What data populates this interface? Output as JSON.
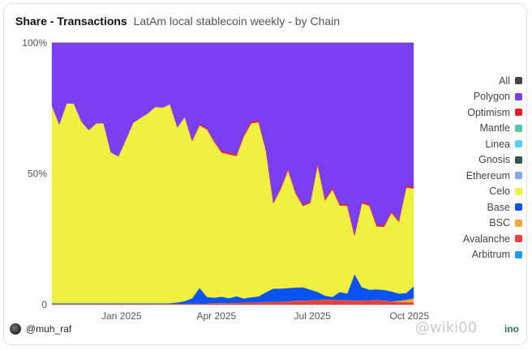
{
  "header": {
    "title": "Share - Transactions",
    "subtitle": "LatAm local stablecoin weekly - by Chain"
  },
  "footer": {
    "author": "@muh_raf",
    "brand": "ino",
    "watermark": "@wiki00"
  },
  "colors": {
    "All": "#444444",
    "Polygon": "#7b3ff2",
    "Optimism": "#ee1d25",
    "Mantle": "#5bc4a7",
    "Linea": "#56d3ef",
    "Gnosis": "#36574b",
    "Ethereum": "#8aa6e8",
    "Celo": "#eff041",
    "Base": "#0a52f2",
    "BSC": "#f2a83a",
    "Avalanche": "#e8413d",
    "Arbitrum": "#1a9ee8"
  },
  "chart_data": {
    "type": "area",
    "stacked": true,
    "normalized": true,
    "title": "Share - Transactions",
    "subtitle": "LatAm local stablecoin weekly - by Chain",
    "yticks": [
      "0",
      "50%",
      "100%"
    ],
    "xticks": [
      "Jan 2025",
      "Apr 2025",
      "Jul 2025",
      "Oct 2025"
    ],
    "ylim": [
      0,
      100
    ],
    "grid": false,
    "legend_position": "right",
    "legend": [
      "All",
      "Polygon",
      "Optimism",
      "Mantle",
      "Linea",
      "Gnosis",
      "Ethereum",
      "Celo",
      "Base",
      "BSC",
      "Avalanche",
      "Arbitrum"
    ],
    "x": [
      "2024-10-27",
      "2024-11-03",
      "2024-11-10",
      "2024-11-17",
      "2024-11-24",
      "2024-12-01",
      "2024-12-08",
      "2024-12-15",
      "2024-12-22",
      "2024-12-29",
      "2025-01-05",
      "2025-01-12",
      "2025-01-19",
      "2025-01-26",
      "2025-02-02",
      "2025-02-09",
      "2025-02-16",
      "2025-02-23",
      "2025-03-02",
      "2025-03-09",
      "2025-03-16",
      "2025-03-23",
      "2025-03-30",
      "2025-04-06",
      "2025-04-13",
      "2025-04-20",
      "2025-04-27",
      "2025-05-04",
      "2025-05-11",
      "2025-05-18",
      "2025-05-25",
      "2025-06-01",
      "2025-06-08",
      "2025-06-15",
      "2025-06-22",
      "2025-06-29",
      "2025-07-06",
      "2025-07-13",
      "2025-07-20",
      "2025-07-27",
      "2025-08-03",
      "2025-08-10",
      "2025-08-17",
      "2025-08-24",
      "2025-08-31",
      "2025-09-07",
      "2025-09-14",
      "2025-09-21",
      "2025-09-28",
      "2025-10-05"
    ],
    "series": [
      {
        "name": "Arbitrum",
        "values": [
          0,
          0,
          0,
          0,
          0,
          0,
          0,
          0,
          0,
          0,
          0,
          0,
          0,
          0,
          0,
          0,
          0,
          0,
          0,
          0,
          0,
          0,
          0,
          0,
          0,
          0,
          0,
          0,
          0,
          0,
          0,
          0,
          0,
          0,
          0,
          0,
          0,
          0,
          0,
          0,
          0,
          0,
          0,
          0,
          0,
          0,
          0,
          0,
          0,
          0
        ]
      },
      {
        "name": "Avalanche",
        "values": [
          0.2,
          0.2,
          0.2,
          0.2,
          0.2,
          0.2,
          0.2,
          0.2,
          0.2,
          0.2,
          0.2,
          0.2,
          0.2,
          0.2,
          0.2,
          0.2,
          0.2,
          0.2,
          0.2,
          0.3,
          0.3,
          0.3,
          0.5,
          0.5,
          0.5,
          0.6,
          0.7,
          0.7,
          0.8,
          0.9,
          1,
          1,
          1.2,
          1.4,
          1.5,
          1.6,
          1.7,
          1.8,
          1.8,
          1.7,
          1.6,
          1.5,
          1.5,
          1.6,
          1.7,
          1.5,
          1.2,
          1,
          0.9,
          0.9
        ]
      },
      {
        "name": "BSC",
        "values": [
          0.1,
          0.1,
          0.1,
          0.1,
          0.1,
          0.1,
          0.1,
          0.1,
          0.1,
          0.1,
          0.1,
          0.1,
          0.1,
          0.1,
          0.1,
          0.1,
          0.1,
          0.1,
          0.1,
          0.1,
          0.1,
          0.1,
          0.1,
          0.1,
          0.1,
          0.1,
          0.1,
          0.1,
          0.1,
          0.1,
          0.1,
          0.1,
          0.1,
          0.1,
          0.1,
          0.1,
          0.1,
          0.1,
          0.1,
          0.1,
          0.1,
          0.1,
          0.1,
          0.1,
          0.1,
          0.1,
          0.1,
          0.5,
          1,
          1.5
        ]
      },
      {
        "name": "Base",
        "values": [
          0.2,
          0.2,
          0.2,
          0.2,
          0.2,
          0.2,
          0.2,
          0.2,
          0.2,
          0.2,
          0.2,
          0.2,
          0.2,
          0.2,
          0.2,
          0.2,
          0.2,
          0.5,
          1,
          2,
          6,
          2.5,
          2,
          2.4,
          1.8,
          2.5,
          1.5,
          2,
          2.2,
          3.7,
          5,
          5,
          5,
          5,
          5,
          4,
          3,
          1.5,
          1,
          3,
          2.5,
          10,
          5,
          4,
          4,
          4,
          3.7,
          2.7,
          2.5,
          4.5
        ]
      },
      {
        "name": "Ethereum",
        "values": [
          0,
          0,
          0,
          0,
          0,
          0,
          0,
          0,
          0,
          0,
          0,
          0,
          0,
          0,
          0,
          0,
          0,
          0,
          0,
          0,
          0,
          0,
          0,
          0,
          0,
          0,
          0,
          0,
          0,
          0,
          0,
          0,
          0,
          0,
          0,
          0,
          0,
          0,
          0,
          0,
          0,
          0,
          0,
          0,
          0,
          0,
          0,
          0,
          0,
          0
        ]
      },
      {
        "name": "Gnosis",
        "values": [
          0.1,
          0.1,
          0.1,
          0.1,
          0.1,
          0.1,
          0.1,
          0.1,
          0.1,
          0.1,
          0.1,
          0.1,
          0.1,
          0.1,
          0.1,
          0.1,
          0.1,
          0.1,
          0.1,
          0.1,
          0.1,
          0.1,
          0.1,
          0.1,
          0.1,
          0.1,
          0.1,
          0.1,
          0.1,
          0.1,
          0.1,
          0.1,
          0.1,
          0.1,
          0.1,
          0.1,
          0.1,
          0.1,
          0.1,
          0.1,
          0.1,
          0.1,
          0.1,
          0.1,
          0.1,
          0.1,
          0.1,
          0.1,
          0.1,
          0.1
        ]
      },
      {
        "name": "Linea",
        "values": [
          0,
          0,
          0,
          0,
          0,
          0,
          0,
          0,
          0,
          0,
          0,
          0,
          0,
          0,
          0,
          0,
          0,
          0,
          0,
          0,
          0,
          0,
          0,
          0,
          0,
          0,
          0,
          0,
          0,
          0,
          0,
          0,
          0,
          0,
          0,
          0,
          0,
          0,
          0,
          0,
          0,
          0,
          0,
          0,
          0,
          0,
          0,
          0,
          0,
          0
        ]
      },
      {
        "name": "Mantle",
        "values": [
          0,
          0,
          0,
          0,
          0,
          0,
          0,
          0,
          0,
          0,
          0,
          0,
          0,
          0,
          0,
          0,
          0,
          0,
          0,
          0,
          0,
          0,
          0,
          0,
          0,
          0,
          0,
          0,
          0,
          0,
          0,
          0,
          0,
          0,
          0,
          0,
          0,
          0,
          0,
          0,
          0,
          0,
          0,
          0,
          0,
          0,
          0,
          0,
          0,
          0
        ]
      },
      {
        "name": "Celo",
        "values": [
          75.4,
          68.2,
          76.4,
          76.2,
          69.4,
          66.1,
          68.7,
          68.8,
          57.6,
          56.1,
          62.4,
          68.9,
          70.8,
          72.5,
          75,
          74.9,
          76.1,
          66.9,
          70.3,
          60,
          62,
          64,
          59.5,
          55,
          55,
          53.5,
          62,
          66.5,
          66.5,
          54,
          32.5,
          38,
          45,
          36,
          31,
          33,
          48.5,
          36.3,
          41,
          33,
          33.5,
          14.5,
          32,
          32,
          24,
          24,
          30,
          27.3,
          40.2,
          37.3
        ]
      },
      {
        "name": "Optimism",
        "values": [
          0,
          0,
          0,
          0,
          0,
          0,
          0,
          0,
          0,
          0,
          0,
          0,
          0,
          0,
          0,
          0,
          0,
          0,
          0,
          0.3,
          0.4,
          0.4,
          0.5,
          0.6,
          0.6,
          0.6,
          0.7,
          0.7,
          0.7,
          0.6,
          0.6,
          0.5,
          0.5,
          0.5,
          0.5,
          0.5,
          0.6,
          0.6,
          0.6,
          0.6,
          0.6,
          0.6,
          0.6,
          0.6,
          0.6,
          0.6,
          0.6,
          0.6,
          0.6,
          0.6
        ]
      },
      {
        "name": "Polygon",
        "values": [
          24,
          31,
          23,
          23.2,
          30,
          33.3,
          30.7,
          30.6,
          41.8,
          43.3,
          37,
          30.5,
          28.6,
          26.9,
          24.4,
          24.7,
          23.4,
          32.2,
          28.2,
          37.2,
          31.1,
          32.6,
          37.3,
          41.3,
          42,
          42.6,
          35,
          30,
          29.6,
          40.6,
          60.7,
          55.3,
          48.1,
          56.9,
          61.8,
          60.6,
          46,
          59.6,
          55.3,
          61.5,
          61.6,
          72.7,
          60.6,
          61.6,
          69.4,
          69.6,
          64.2,
          67.7,
          54.6,
          54.9
        ]
      },
      {
        "name": "All",
        "values": [
          0,
          0,
          0,
          0,
          0,
          0,
          0,
          0,
          0,
          0,
          0,
          0,
          0,
          0,
          0,
          0,
          0,
          0,
          0,
          0,
          0,
          0,
          0,
          0,
          0,
          0,
          0,
          0,
          0,
          0,
          0,
          0,
          0,
          0,
          0,
          0,
          0,
          0,
          0,
          0,
          0,
          0,
          0,
          0,
          0,
          0,
          0,
          0,
          0,
          0
        ]
      }
    ]
  }
}
